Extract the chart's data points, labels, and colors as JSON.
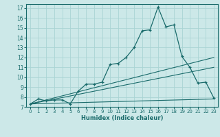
{
  "xlabel": "Humidex (Indice chaleur)",
  "ylabel": "",
  "bg_color": "#cce8e8",
  "line_color": "#1a6b6b",
  "grid_color": "#aad4d4",
  "xlim": [
    -0.5,
    23.5
  ],
  "ylim": [
    7,
    17.4
  ],
  "xticks": [
    0,
    1,
    2,
    3,
    4,
    5,
    6,
    7,
    8,
    9,
    10,
    11,
    12,
    13,
    14,
    15,
    16,
    17,
    18,
    19,
    20,
    21,
    22,
    23
  ],
  "yticks": [
    7,
    8,
    9,
    10,
    11,
    12,
    13,
    14,
    15,
    16,
    17
  ],
  "line1_x": [
    0,
    1,
    2,
    3,
    4,
    5,
    6,
    7,
    8,
    9,
    10,
    11,
    12,
    13,
    14,
    15,
    16,
    17,
    18,
    19,
    20,
    21,
    22,
    23
  ],
  "line1_y": [
    7.3,
    7.8,
    7.6,
    7.7,
    7.7,
    7.3,
    8.6,
    9.3,
    9.3,
    9.5,
    11.3,
    11.4,
    12.0,
    13.0,
    14.7,
    14.8,
    17.1,
    15.1,
    15.3,
    12.1,
    11.0,
    9.4,
    9.5,
    7.9
  ],
  "line2_x": [
    0,
    23
  ],
  "line2_y": [
    7.3,
    12.0
  ],
  "line3_x": [
    0,
    23
  ],
  "line3_y": [
    7.3,
    11.0
  ],
  "line4_x": [
    0,
    23
  ],
  "line4_y": [
    7.3,
    7.8
  ]
}
